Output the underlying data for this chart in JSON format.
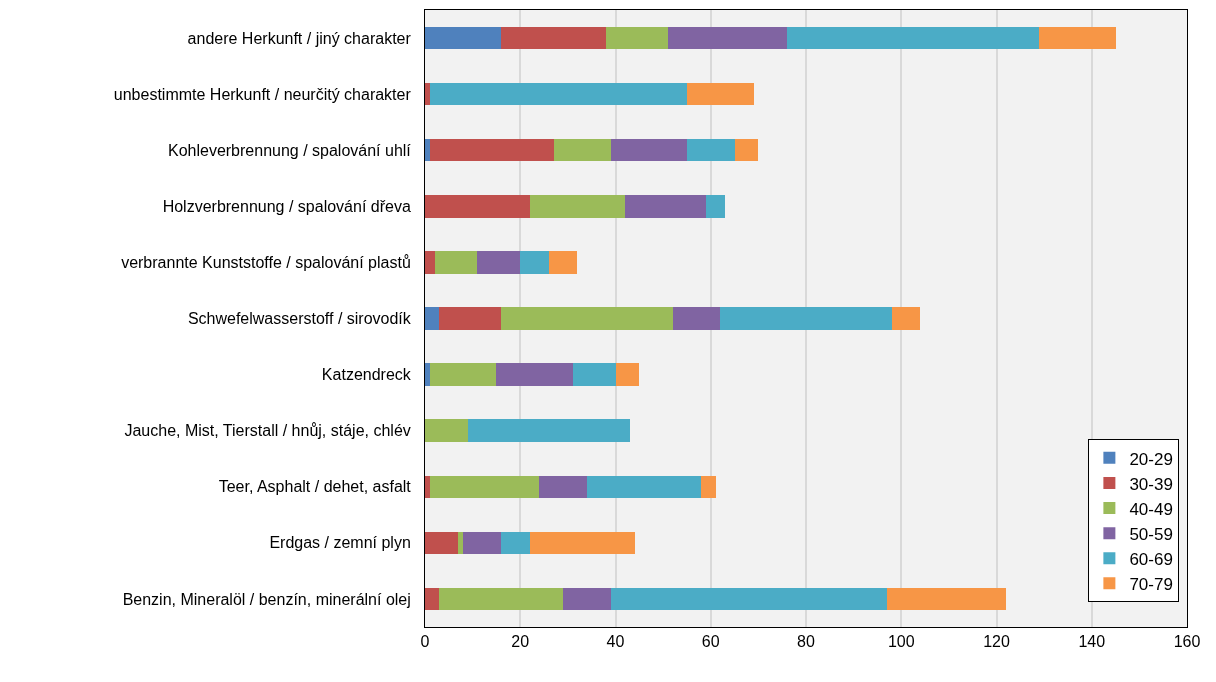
{
  "chart_data": {
    "type": "bar",
    "orientation": "horizontal",
    "stacked": true,
    "categories": [
      "andere Herkunft / jiný charakter",
      "unbestimmte Herkunft / neurčitý charakter",
      "Kohleverbrennung / spalování uhlí",
      "Holzverbrennung / spalování dřeva",
      "verbrannte Kunststoffe / spalování plastů",
      "Schwefelwasserstoff / sirovodík",
      "Katzendreck",
      "Jauche, Mist, Tierstall / hnůj, stáje, chlév",
      "Teer, Asphalt / dehet, asfalt",
      "Erdgas / zemní plyn",
      "Benzin, Mineralöl / benzín, minerální olej"
    ],
    "series": [
      {
        "name": "20-29",
        "color": "#4f81bd",
        "values": [
          16,
          0,
          1,
          0,
          0,
          3,
          1,
          0,
          0,
          0,
          0
        ]
      },
      {
        "name": "30-39",
        "color": "#c0504d",
        "values": [
          22,
          1,
          26,
          22,
          2,
          13,
          0,
          0,
          1,
          7,
          3
        ]
      },
      {
        "name": "40-49",
        "color": "#9bbb59",
        "values": [
          13,
          0,
          12,
          20,
          9,
          36,
          14,
          9,
          23,
          1,
          26
        ]
      },
      {
        "name": "50-59",
        "color": "#8064a2",
        "values": [
          25,
          0,
          16,
          17,
          9,
          10,
          16,
          0,
          10,
          8,
          10
        ]
      },
      {
        "name": "60-69",
        "color": "#4bacc6",
        "values": [
          53,
          54,
          10,
          4,
          6,
          36,
          9,
          34,
          24,
          6,
          58
        ]
      },
      {
        "name": "70-79",
        "color": "#f79646",
        "values": [
          16,
          14,
          5,
          0,
          6,
          6,
          5,
          0,
          3,
          22,
          25
        ]
      }
    ],
    "xlim": [
      0,
      160
    ],
    "xticks": [
      0,
      20,
      40,
      60,
      80,
      100,
      120,
      140,
      160
    ],
    "grid": "x",
    "legend": "bottom right"
  }
}
